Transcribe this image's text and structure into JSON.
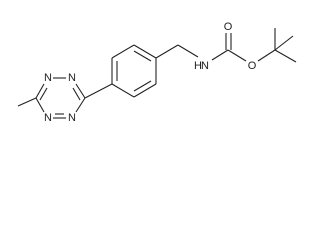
{
  "molecule": {
    "atoms": {
      "tetrazine_n": [
        "N",
        "N",
        "N",
        "N"
      ],
      "amine_n": "N",
      "amine_h": "H",
      "carbonyl_o": "O",
      "ester_o": "O"
    }
  }
}
